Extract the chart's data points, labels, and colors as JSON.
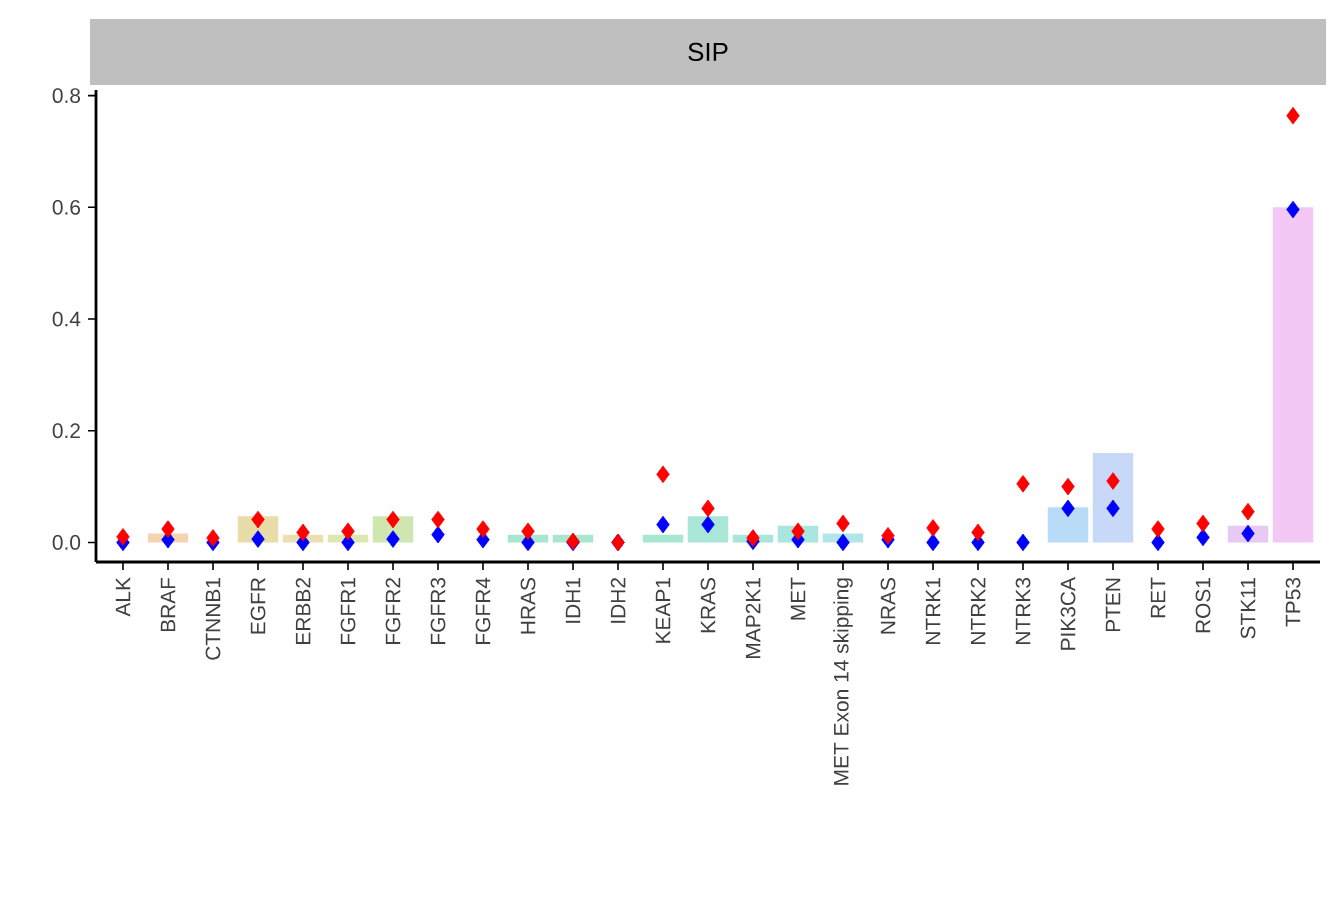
{
  "chart_data": {
    "type": "bar",
    "title": "SIP",
    "categories": [
      "ALK",
      "BRAF",
      "CTNNB1",
      "EGFR",
      "ERBB2",
      "FGFR1",
      "FGFR2",
      "FGFR3",
      "FGFR4",
      "HRAS",
      "IDH1",
      "IDH2",
      "KEAP1",
      "KRAS",
      "MAP2K1",
      "MET",
      "MET Exon 14 skipping",
      "NRAS",
      "NTRK1",
      "NTRK2",
      "NTRK3",
      "PIK3CA",
      "PTEN",
      "RET",
      "ROS1",
      "STK11",
      "TP53"
    ],
    "series": [
      {
        "colors": [
          "#f5d5b0",
          "#f5d5b0",
          "#f0d8a8",
          "#e8dca8",
          "#ede0b0",
          "#dde8b0",
          "#cfe6b0",
          "#c0e6b8",
          "#b0e6c0",
          "#a8e6d0",
          "#a8e6d0",
          "#a8e6d4",
          "#a8e6d4",
          "#a8e6d8",
          "#a8e6dc",
          "#a8e6e0",
          "#b0e6e8",
          "#b0e0f0",
          "#b4dcf4",
          "#b4dcf4",
          "#b8dcf8",
          "#b8dcf8",
          "#c8d8f8",
          "#d8d0f8",
          "#e0ccf8",
          "#e8c8f4",
          "#f4c8f4"
        ],
        "values": [
          0,
          0.016,
          0,
          0.047,
          0.014,
          0.014,
          0.047,
          0,
          0,
          0.014,
          0.014,
          0,
          0.014,
          0.047,
          0.014,
          0.03,
          0.016,
          0,
          0,
          0,
          0,
          0.063,
          0.16,
          0,
          0,
          0.03,
          0.6
        ]
      },
      {
        "type": "scatter",
        "marker": "diamond",
        "color": "#0000ff",
        "values": [
          0,
          0.005,
          0,
          0.006,
          0,
          0,
          0.006,
          0.014,
          0.005,
          0,
          0,
          0,
          0.032,
          0.032,
          0.002,
          0.005,
          0,
          0.005,
          0,
          0,
          0,
          0.061,
          0.061,
          0,
          0.009,
          0.016,
          0.596
        ]
      },
      {
        "type": "scatter",
        "marker": "diamond",
        "color": "#ff0000",
        "values": [
          0.01,
          0.024,
          0.008,
          0.041,
          0.018,
          0.02,
          0.041,
          0.041,
          0.024,
          0.02,
          0.002,
          0,
          0.122,
          0.061,
          0.008,
          0.02,
          0.034,
          0.012,
          0.026,
          0.018,
          0.105,
          0.1,
          0.11,
          0.024,
          0.034,
          0.055,
          0.764
        ]
      }
    ],
    "ylim": [
      -0.035,
      0.81
    ],
    "yticks": [
      {
        "value": 0,
        "label": "0.0"
      },
      {
        "value": 0.2,
        "label": "0.2"
      },
      {
        "value": 0.4,
        "label": "0.4"
      },
      {
        "value": 0.6,
        "label": "0.6"
      },
      {
        "value": 0.8,
        "label": "0.8"
      }
    ]
  }
}
